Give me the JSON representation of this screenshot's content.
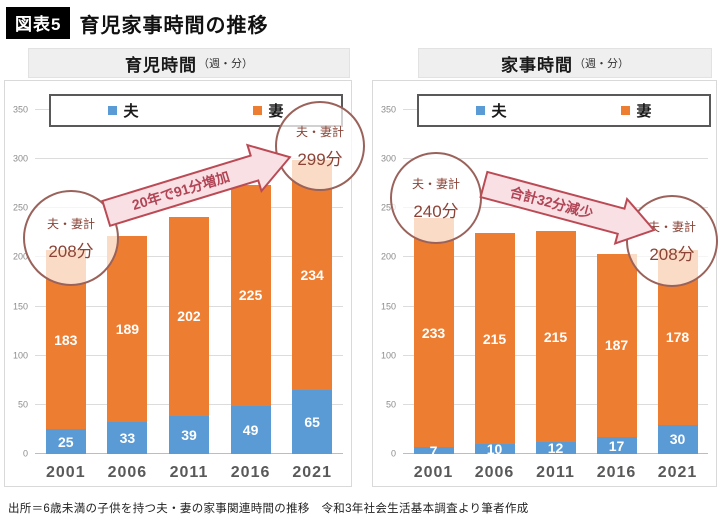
{
  "title": {
    "tag": "図表5",
    "text": "育児家事時間の推移"
  },
  "caption": "出所＝6歳未満の子供を持つ夫・妻の家事関連時間の推移　令和3年社会生活基本調査より筆者作成",
  "legend": {
    "husband": "夫",
    "wife": "妻"
  },
  "colors": {
    "husband_bar": "#5B9BD5",
    "wife_bar": "#ED7D31",
    "circle_border": "#9a625a",
    "circle_text": "#8b4437",
    "arrow_fill": "#f8e0e4",
    "arrow_border": "#bb4a55"
  },
  "chart_data": [
    {
      "type": "bar",
      "stacked": true,
      "title": "育児時間",
      "unit": "（週・分）",
      "categories": [
        "2001",
        "2006",
        "2011",
        "2016",
        "2021"
      ],
      "series": [
        {
          "name": "夫",
          "values": [
            25,
            33,
            39,
            49,
            65
          ]
        },
        {
          "name": "妻",
          "values": [
            183,
            189,
            202,
            225,
            234
          ]
        }
      ],
      "totals": [
        208,
        222,
        241,
        274,
        299
      ],
      "ylim": [
        0,
        350
      ],
      "ytick_step": 50,
      "grid": true,
      "legend_position": "top",
      "annotations": {
        "circle_start": {
          "label": "夫・妻計",
          "value": "208分"
        },
        "circle_end": {
          "label": "夫・妻計",
          "value": "299分"
        },
        "arrow": {
          "text": "20年で91分増加",
          "direction": "up"
        }
      }
    },
    {
      "type": "bar",
      "stacked": true,
      "title": "家事時間",
      "unit": "（週・分）",
      "categories": [
        "2001",
        "2006",
        "2011",
        "2016",
        "2021"
      ],
      "series": [
        {
          "name": "夫",
          "values": [
            7,
            10,
            12,
            17,
            30
          ]
        },
        {
          "name": "妻",
          "values": [
            233,
            215,
            215,
            187,
            178
          ]
        }
      ],
      "totals": [
        240,
        225,
        227,
        204,
        208
      ],
      "ylim": [
        0,
        350
      ],
      "ytick_step": 50,
      "grid": true,
      "legend_position": "top",
      "annotations": {
        "circle_start": {
          "label": "夫・妻計",
          "value": "240分"
        },
        "circle_end": {
          "label": "夫・妻計",
          "value": "208分"
        },
        "arrow": {
          "text": "合計32分減少",
          "direction": "down"
        }
      }
    }
  ]
}
